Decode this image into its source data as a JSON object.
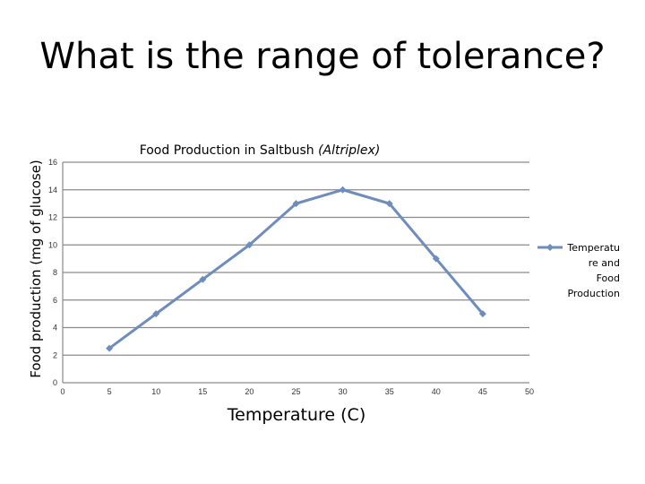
{
  "slide": {
    "title": "What is the range of tolerance?"
  },
  "chart_data": {
    "type": "line",
    "title": "Food Production in Saltbush",
    "title_italic": "(Altriplex)",
    "xlabel": "Temperature (C)",
    "ylabel": "Food production (mg of glucose)",
    "xlim": [
      0,
      50
    ],
    "ylim": [
      0,
      16
    ],
    "x_ticks": [
      0,
      5,
      10,
      15,
      20,
      25,
      30,
      35,
      40,
      45,
      50
    ],
    "y_ticks": [
      0,
      2,
      4,
      6,
      8,
      10,
      12,
      14,
      16
    ],
    "grid": true,
    "legend": "right",
    "series": [
      {
        "name": "Temperature and Food Production",
        "legend_lines": [
          "Temperatu",
          "re and",
          "Food",
          "Production"
        ],
        "color": "#6E8DBD",
        "x": [
          5,
          10,
          15,
          20,
          25,
          30,
          35,
          40,
          45
        ],
        "y": [
          2.5,
          5,
          7.5,
          10,
          13,
          14,
          13,
          9,
          5
        ]
      }
    ]
  }
}
